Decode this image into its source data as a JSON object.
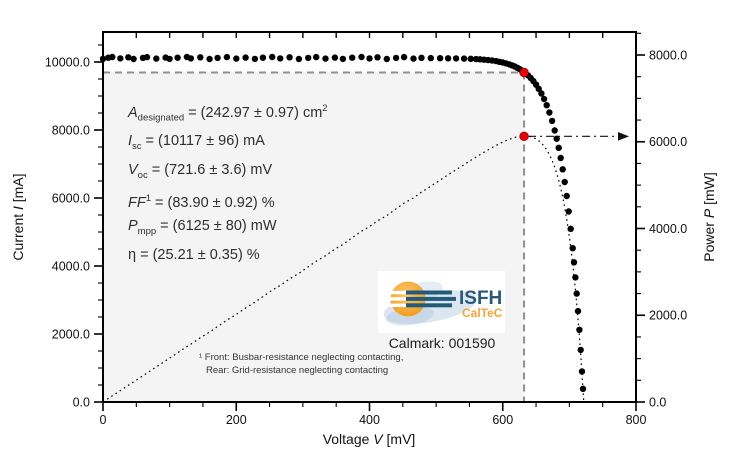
{
  "figure": {
    "xlabel": {
      "pre": "Voltage ",
      "var": "V",
      "post": " [mV]"
    },
    "ylabel_left": {
      "pre": "Current ",
      "var": "I",
      "post": " [mA]"
    },
    "ylabel_right": {
      "pre": "Power ",
      "var": "P",
      "post": " [mW]"
    }
  },
  "annotation": {
    "lines": [
      [
        {
          "t": "A",
          "s": "i"
        },
        {
          "t": "designated",
          "s": "sub"
        },
        {
          "t": " = (242.97 ± 0.97) cm"
        },
        {
          "t": "2",
          "s": "sup"
        }
      ],
      [
        {
          "t": "I",
          "s": "i"
        },
        {
          "t": "sc",
          "s": "sub"
        },
        {
          "t": " = (10117 ± 96) mA"
        }
      ],
      [
        {
          "t": "V",
          "s": "i"
        },
        {
          "t": "oc",
          "s": "sub"
        },
        {
          "t": " = (721.6 ± 3.6) mV"
        }
      ],
      [
        {
          "t": "FF",
          "s": "i"
        },
        {
          "t": "1",
          "s": "sup"
        },
        {
          "t": " = (83.90 ± 0.92) %"
        }
      ],
      [
        {
          "t": "P",
          "s": "i"
        },
        {
          "t": "mpp",
          "s": "sub"
        },
        {
          "t": " = (6125 ± 80) mW"
        }
      ],
      [
        {
          "t": "η = (25.21 ± 0.35) %"
        }
      ]
    ]
  },
  "footnote": {
    "line1": "¹ Front: Busbar-resistance neglecting contacting,",
    "line2": "Rear: Grid-resistance neglecting contacting"
  },
  "logo": {
    "org": "ISFH",
    "unit": "CalTeC",
    "calmark": "Calmark: 001590",
    "colors": {
      "org_text": "#29597b",
      "unit_text": "#f1a43b",
      "sun": "#f29b1d",
      "bars": "#215d7b",
      "swash": "#b7cde2"
    }
  },
  "chart_data": {
    "type": "scatter",
    "title": "",
    "x_axis": {
      "label": "Voltage V [mV]",
      "min": 0,
      "max": 800,
      "major_ticks": [
        0,
        200,
        400,
        600,
        800
      ],
      "tick_labels": [
        "0",
        "200",
        "400",
        "600",
        "800"
      ],
      "minor_step": 50
    },
    "y_axis_left": {
      "label": "Current I [mA]",
      "min": 0,
      "max": 10880,
      "major_ticks": [
        0,
        2000,
        4000,
        6000,
        8000,
        10000
      ],
      "tick_labels": [
        "0.0",
        "2000.0",
        "4000.0",
        "6000.0",
        "8000.0",
        "10000.0"
      ],
      "minor_step": 500
    },
    "y_axis_right": {
      "label": "Power P [mW]",
      "min": 0,
      "max": 8530,
      "major_ticks": [
        0,
        2000,
        4000,
        6000,
        8000
      ],
      "tick_labels": [
        "0.0",
        "2000.0",
        "4000.0",
        "6000.0",
        "8000.0"
      ],
      "minor_step": 500
    },
    "grid": false,
    "legend": "none",
    "colors": {
      "marker": "#000000",
      "power_line": "#000000",
      "mpp_marker": "#e8000b",
      "mpp_marker_edge": "#8e0000",
      "guide": "#8f8f8f",
      "shade": "#f4f4f4",
      "arrow": "#111111"
    },
    "series": [
      {
        "name": "I-V curve (measured points)",
        "type": "scatter",
        "marker": "filled-circle",
        "points": [
          [
            0,
            10092
          ],
          [
            8,
            10127
          ],
          [
            14,
            10147
          ],
          [
            26,
            10107
          ],
          [
            38,
            10139
          ],
          [
            46,
            10087
          ],
          [
            60,
            10122
          ],
          [
            66,
            10145
          ],
          [
            80,
            10099
          ],
          [
            94,
            10129
          ],
          [
            100,
            10092
          ],
          [
            112,
            10127
          ],
          [
            126,
            10147
          ],
          [
            132,
            10107
          ],
          [
            146,
            10139
          ],
          [
            160,
            10087
          ],
          [
            172,
            10122
          ],
          [
            186,
            10145
          ],
          [
            200,
            10099
          ],
          [
            214,
            10129
          ],
          [
            228,
            10092
          ],
          [
            240,
            10127
          ],
          [
            254,
            10147
          ],
          [
            266,
            10107
          ],
          [
            280,
            10139
          ],
          [
            294,
            10087
          ],
          [
            308,
            10122
          ],
          [
            320,
            10145
          ],
          [
            334,
            10099
          ],
          [
            348,
            10129
          ],
          [
            360,
            10092
          ],
          [
            374,
            10127
          ],
          [
            388,
            10147
          ],
          [
            400,
            10107
          ],
          [
            412,
            10139
          ],
          [
            426,
            10087
          ],
          [
            440,
            10122
          ],
          [
            452,
            10145
          ],
          [
            466,
            10099
          ],
          [
            478,
            10125
          ],
          [
            492,
            10114
          ],
          [
            506,
            10112
          ],
          [
            518,
            10110
          ],
          [
            530,
            10106
          ],
          [
            542,
            10100
          ],
          [
            552,
            10093
          ],
          [
            560,
            10085
          ],
          [
            566,
            10078
          ],
          [
            572,
            10069
          ],
          [
            578,
            10057
          ],
          [
            584,
            10043
          ],
          [
            590,
            10025
          ],
          [
            595,
            10007
          ],
          [
            600,
            9986
          ],
          [
            605,
            9960
          ],
          [
            610,
            9929
          ],
          [
            614,
            9900
          ],
          [
            618,
            9867
          ],
          [
            622,
            9828
          ],
          [
            626,
            9784
          ],
          [
            630,
            9733
          ],
          [
            634,
            9675
          ],
          [
            638,
            9607
          ],
          [
            642,
            9528
          ],
          [
            646,
            9437
          ],
          [
            650,
            9333
          ],
          [
            654,
            9212
          ],
          [
            658,
            9073
          ],
          [
            662,
            8913
          ],
          [
            666,
            8728
          ],
          [
            670,
            8515
          ],
          [
            674,
            8269
          ],
          [
            678,
            7984
          ],
          [
            681,
            7744
          ],
          [
            684,
            7476
          ],
          [
            687,
            7177
          ],
          [
            690,
            6845
          ],
          [
            693,
            6472
          ],
          [
            696,
            6060
          ],
          [
            699,
            5603
          ],
          [
            702,
            5093
          ],
          [
            705,
            4525
          ],
          [
            707,
            4109
          ],
          [
            709,
            3666
          ],
          [
            711,
            3189
          ],
          [
            713,
            2675
          ],
          [
            715,
            2124
          ],
          [
            717,
            1532
          ],
          [
            719,
            896
          ],
          [
            720.5,
            389
          ]
        ]
      },
      {
        "name": "Power P = V × I",
        "type": "dotted-line",
        "derived_from": "series 0: P[mW] = (V[mV]/1000) × I[mA]",
        "end_point": [
          721.6,
          0
        ]
      }
    ],
    "mpp": {
      "V_mpp": 632,
      "I_mpp": 9692,
      "P_mpp": 6125
    },
    "results": {
      "A_designated": "(242.97 ± 0.97) cm²",
      "I_sc": "(10117 ± 96) mA",
      "V_oc": "(721.6 ± 3.6) mV",
      "FF": "(83.90 ± 0.92) %",
      "P_mpp": "(6125 ± 80) mW",
      "eta": "(25.21 ± 0.35) %"
    }
  }
}
